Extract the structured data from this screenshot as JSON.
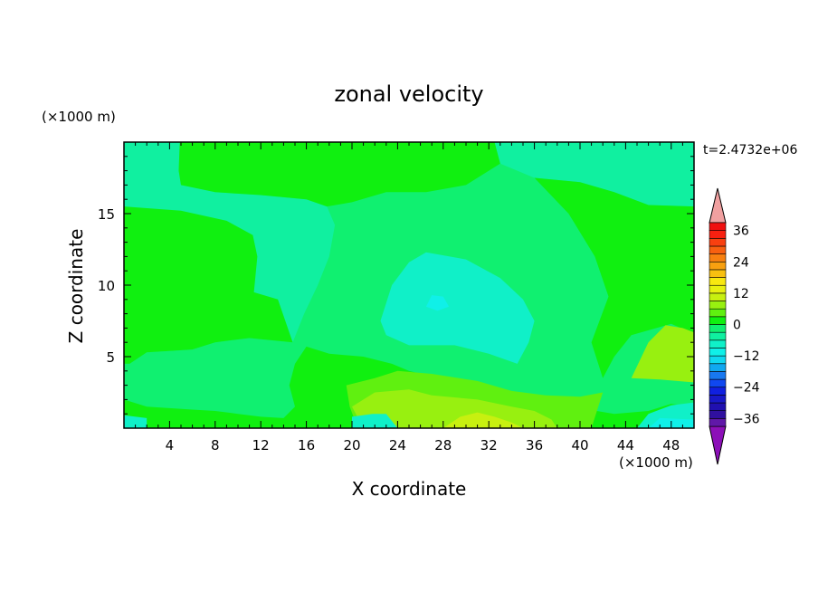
{
  "chart_data": {
    "type": "heatmap",
    "title": "zonal velocity",
    "xlabel": "X coordinate",
    "ylabel": "Z coordinate",
    "x_unit": "(×1000 m)",
    "y_unit": "(×1000 m)",
    "time_label": "t=2.4732e+06",
    "xlim": [
      0,
      50
    ],
    "ylim": [
      0,
      20
    ],
    "x_ticks": [
      "4",
      "8",
      "12",
      "16",
      "20",
      "24",
      "28",
      "32",
      "36",
      "40",
      "44",
      "48"
    ],
    "y_ticks": [
      "5",
      "10",
      "15"
    ],
    "colorbar": {
      "levels": [
        -42,
        -39,
        -36,
        -33,
        -30,
        -27,
        -24,
        -21,
        -18,
        -15,
        -12,
        -9,
        -6,
        -3,
        0,
        3,
        6,
        9,
        12,
        15,
        18,
        21,
        24,
        27,
        30,
        33,
        36,
        39,
        42
      ],
      "colors": [
        "#8c10b8",
        "#6018a8",
        "#3010a0",
        "#2010b0",
        "#1818c8",
        "#1020e0",
        "#1048f0",
        "#1878f0",
        "#10a8f0",
        "#10d8f0",
        "#10f0e8",
        "#10f0c8",
        "#10f0a0",
        "#10f070",
        "#10f010",
        "#60f010",
        "#98f010",
        "#c8f010",
        "#e8f010",
        "#f8e810",
        "#f8c010",
        "#f8a010",
        "#f88010",
        "#f86010",
        "#f84010",
        "#f82010",
        "#f01010",
        "#f0a0a0"
      ],
      "tick_labels": [
        "36",
        "24",
        "12",
        "0",
        "−12",
        "−24",
        "−36"
      ],
      "tick_values": [
        36,
        24,
        12,
        0,
        -12,
        -24,
        -36
      ]
    },
    "regions": [
      {
        "color": "#10f0a0",
        "points": [
          [
            0,
            20
          ],
          [
            4.9,
            20
          ],
          [
            4.8,
            18
          ],
          [
            5,
            17
          ],
          [
            8,
            16.5
          ],
          [
            12,
            16.3
          ],
          [
            16,
            16
          ],
          [
            17.8,
            15.5
          ],
          [
            18.5,
            14.2
          ],
          [
            18,
            12
          ],
          [
            17,
            10
          ],
          [
            15.8,
            8
          ],
          [
            14.8,
            6
          ],
          [
            11,
            6.3
          ],
          [
            8,
            6
          ],
          [
            6,
            5.5
          ],
          [
            4,
            5.4
          ],
          [
            2,
            5.3
          ],
          [
            0.5,
            4.5
          ],
          [
            0,
            4.5
          ]
        ]
      },
      {
        "color": "#10f0a0",
        "points": [
          [
            32.5,
            20
          ],
          [
            50,
            20
          ],
          [
            50,
            15.5
          ],
          [
            46,
            15.6
          ],
          [
            43,
            16.5
          ],
          [
            40,
            17.2
          ],
          [
            36,
            17.5
          ],
          [
            33,
            18.5
          ]
        ]
      },
      {
        "color": "#10f010",
        "points": [
          [
            4.9,
            20
          ],
          [
            32.5,
            20
          ],
          [
            33,
            18.5
          ],
          [
            30,
            17
          ],
          [
            26.5,
            16.5
          ],
          [
            23,
            16.5
          ],
          [
            20,
            15.8
          ],
          [
            17.8,
            15.5
          ],
          [
            16,
            16
          ],
          [
            12,
            16.3
          ],
          [
            8,
            16.5
          ],
          [
            5,
            17
          ],
          [
            4.8,
            18
          ]
        ]
      },
      {
        "color": "#10f010",
        "points": [
          [
            0,
            15.5
          ],
          [
            5,
            15.2
          ],
          [
            9,
            14.5
          ],
          [
            11.3,
            13.5
          ],
          [
            11.7,
            12
          ],
          [
            11.4,
            9.5
          ],
          [
            13.5,
            9
          ],
          [
            14.8,
            6
          ],
          [
            11,
            6.3
          ],
          [
            8,
            6
          ],
          [
            6,
            5.5
          ],
          [
            4,
            5.4
          ],
          [
            2,
            5.3
          ],
          [
            0.5,
            4.5
          ],
          [
            0,
            4.5
          ]
        ]
      },
      {
        "color": "#10f010",
        "points": [
          [
            36,
            17.5
          ],
          [
            40,
            17.2
          ],
          [
            43,
            16.5
          ],
          [
            46,
            15.6
          ],
          [
            50,
            15.5
          ],
          [
            50,
            6.6
          ],
          [
            48,
            7.3
          ],
          [
            44.5,
            6.5
          ],
          [
            43,
            5
          ],
          [
            42,
            3.5
          ],
          [
            41,
            6
          ],
          [
            42.5,
            9.2
          ],
          [
            41.3,
            12
          ],
          [
            39,
            15
          ]
        ]
      },
      {
        "color": "#10f010",
        "points": [
          [
            16,
            5.7
          ],
          [
            18,
            5.2
          ],
          [
            21,
            5
          ],
          [
            23.5,
            4.5
          ],
          [
            25,
            4
          ],
          [
            27.5,
            3.5
          ],
          [
            30,
            2.5
          ],
          [
            32,
            2
          ],
          [
            34,
            2.2
          ],
          [
            36,
            1.8
          ],
          [
            38,
            1.6
          ],
          [
            40,
            1.4
          ],
          [
            43,
            1
          ],
          [
            46,
            1.2
          ],
          [
            48,
            1.7
          ],
          [
            50,
            1.5
          ],
          [
            50,
            0
          ],
          [
            0,
            0
          ],
          [
            0,
            2
          ],
          [
            2,
            1.5
          ],
          [
            4,
            1.4
          ],
          [
            6,
            1.3
          ],
          [
            8,
            1.2
          ],
          [
            10,
            1
          ],
          [
            12,
            0.8
          ],
          [
            14,
            0.7
          ],
          [
            15,
            1.5
          ],
          [
            14.5,
            3
          ],
          [
            15,
            4.5
          ]
        ]
      },
      {
        "color": "#60f010",
        "points": [
          [
            19.5,
            3
          ],
          [
            22,
            3.5
          ],
          [
            24,
            4
          ],
          [
            27,
            3.8
          ],
          [
            31,
            3.3
          ],
          [
            34,
            2.6
          ],
          [
            37,
            2.3
          ],
          [
            40,
            2.2
          ],
          [
            42,
            2.5
          ],
          [
            41,
            0
          ],
          [
            20.5,
            0
          ],
          [
            19.8,
            1.5
          ]
        ]
      },
      {
        "color": "#98f010",
        "points": [
          [
            20,
            1.5
          ],
          [
            22,
            2.5
          ],
          [
            25,
            2.7
          ],
          [
            27,
            2.3
          ],
          [
            31,
            2
          ],
          [
            34,
            1.5
          ],
          [
            36,
            1.2
          ],
          [
            37.5,
            0.6
          ],
          [
            38,
            0
          ],
          [
            21,
            0
          ]
        ]
      },
      {
        "color": "#c8f010",
        "points": [
          [
            28,
            0
          ],
          [
            29.5,
            0.8
          ],
          [
            31,
            1.1
          ],
          [
            32.5,
            0.8
          ],
          [
            34,
            0.4
          ],
          [
            35,
            0
          ]
        ]
      },
      {
        "color": "#98f010",
        "points": [
          [
            44.5,
            3.5
          ],
          [
            46,
            6
          ],
          [
            47.5,
            7.2
          ],
          [
            49,
            7
          ],
          [
            50,
            6.7
          ],
          [
            50,
            3.2
          ],
          [
            47,
            3.4
          ]
        ]
      },
      {
        "color": "#10f0c8",
        "points": [
          [
            20,
            0
          ],
          [
            24,
            0
          ],
          [
            23,
            1
          ],
          [
            21.8,
            1
          ],
          [
            20,
            0.8
          ]
        ]
      },
      {
        "color": "#10f0c8",
        "points": [
          [
            22.5,
            7.5
          ],
          [
            23.5,
            10
          ],
          [
            25,
            11.6
          ],
          [
            26.5,
            12.3
          ],
          [
            30,
            11.8
          ],
          [
            33,
            10.5
          ],
          [
            35,
            9
          ],
          [
            36,
            7.5
          ],
          [
            35.5,
            6
          ],
          [
            34.5,
            4.5
          ],
          [
            32,
            5.2
          ],
          [
            29,
            5.8
          ],
          [
            25,
            5.8
          ],
          [
            23,
            6.5
          ]
        ]
      },
      {
        "color": "#10f0e8",
        "points": [
          [
            26.5,
            8.5
          ],
          [
            27,
            9.3
          ],
          [
            28,
            9.2
          ],
          [
            28.5,
            8.5
          ],
          [
            27.5,
            8.2
          ]
        ]
      },
      {
        "color": "#10f0c8",
        "points": [
          [
            0,
            0
          ],
          [
            2,
            0
          ],
          [
            2,
            0.7
          ],
          [
            0,
            0.9
          ]
        ]
      },
      {
        "color": "#10f0c8",
        "points": [
          [
            45,
            0
          ],
          [
            50,
            0
          ],
          [
            50,
            1.8
          ],
          [
            48,
            1.6
          ],
          [
            46,
            1
          ]
        ]
      },
      {
        "color": "#10f0e8",
        "points": [
          [
            46,
            0
          ],
          [
            50,
            0
          ],
          [
            50,
            0.6
          ],
          [
            47,
            0.7
          ]
        ]
      }
    ]
  }
}
